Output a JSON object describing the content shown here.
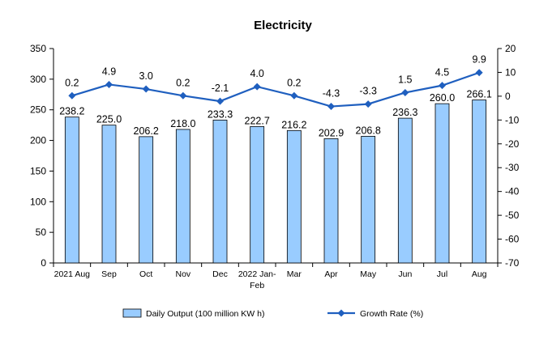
{
  "chart_data": {
    "type": "bar",
    "title": "Electricity",
    "categories": [
      "2021 Aug",
      "Sep",
      "Oct",
      "Nov",
      "Dec",
      "2022 Jan-Feb",
      "Mar",
      "Apr",
      "May",
      "Jun",
      "Jul",
      "Aug"
    ],
    "category_lines": [
      [
        "2021 Aug"
      ],
      [
        "Sep"
      ],
      [
        "Oct"
      ],
      [
        "Nov"
      ],
      [
        "Dec"
      ],
      [
        "2022 Jan-",
        "Feb"
      ],
      [
        "Mar"
      ],
      [
        "Apr"
      ],
      [
        "May"
      ],
      [
        "Jun"
      ],
      [
        "Jul"
      ],
      [
        "Aug"
      ]
    ],
    "series": [
      {
        "name": "Daily Output (100 million KW h)",
        "type": "bar",
        "axis": "left",
        "color": "#99ccff",
        "values": [
          238.2,
          225.0,
          206.2,
          218.0,
          233.3,
          222.7,
          216.2,
          202.9,
          206.8,
          236.3,
          260.0,
          266.1
        ],
        "labels": [
          "238.2",
          "225.0",
          "206.2",
          "218.0",
          "233.3",
          "222.7",
          "216.2",
          "202.9",
          "206.8",
          "236.3",
          "260.0",
          "266.1"
        ]
      },
      {
        "name": "Growth Rate (%)",
        "type": "line",
        "axis": "right",
        "color": "#1f5fbf",
        "values": [
          0.2,
          4.9,
          3.0,
          0.2,
          -2.1,
          4.0,
          0.2,
          -4.3,
          -3.3,
          1.5,
          4.5,
          9.9
        ],
        "labels": [
          "0.2",
          "4.9",
          "3.0",
          "0.2",
          "-2.1",
          "4.0",
          "0.2",
          "-4.3",
          "-3.3",
          "1.5",
          "4.5",
          "9.9"
        ]
      }
    ],
    "y_left": {
      "min": 0,
      "max": 350,
      "step": 50,
      "ticks": [
        "0",
        "50",
        "100",
        "150",
        "200",
        "250",
        "300",
        "350"
      ]
    },
    "y_right": {
      "min": -70,
      "max": 20,
      "step": 10,
      "ticks": [
        "-70",
        "-60",
        "-50",
        "-40",
        "-30",
        "-20",
        "-10",
        "0",
        "10",
        "20"
      ]
    },
    "grid": false,
    "legend_position": "bottom"
  }
}
